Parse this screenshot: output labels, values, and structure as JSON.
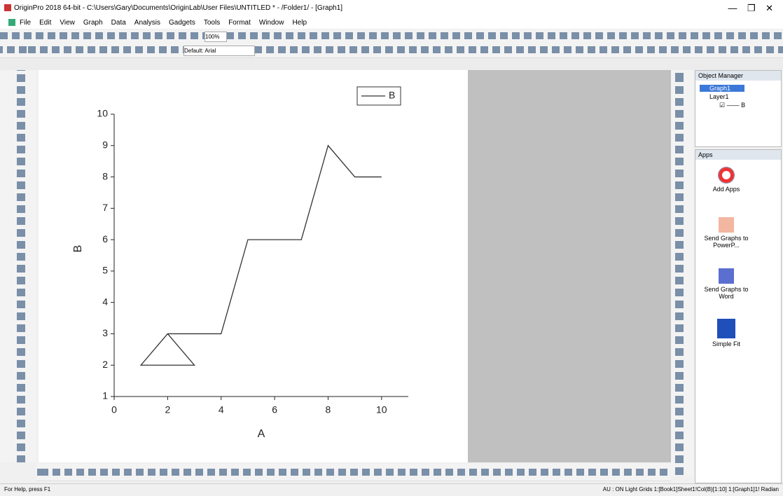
{
  "window": {
    "title": "OriginPro 2018 64-bit - C:\\Users\\Gary\\Documents\\OriginLab\\User Files\\UNTITLED * - /Folder1/ - [Graph1]",
    "menu": [
      "File",
      "Edit",
      "View",
      "Graph",
      "Data",
      "Analysis",
      "Gadgets",
      "Tools",
      "Format",
      "Window",
      "Help"
    ],
    "zoom": "100%",
    "font": "Default: Arial",
    "status_left": "For Help, press F1",
    "status_right": "AU : ON  Light Grids  1:[Book1]Sheet1!Col(B)[1:10]  1:[Graph1]1!  Radian"
  },
  "object_manager": {
    "title": "Object Manager",
    "items": [
      "Graph1",
      "Layer1",
      "B"
    ]
  },
  "apps": {
    "title": "Apps",
    "items": [
      "Add Apps",
      "Send Graphs to PowerP...",
      "Send Graphs to Word",
      "Simple Fit"
    ]
  },
  "chart_data": {
    "type": "line",
    "xlabel": "A",
    "ylabel": "B",
    "x": [
      2,
      3,
      1,
      2,
      4,
      5,
      7,
      8,
      9,
      10
    ],
    "series": [
      {
        "name": "B",
        "color": "#333333",
        "values": [
          3,
          2,
          2,
          3,
          3,
          6,
          6,
          9,
          8,
          8
        ]
      }
    ],
    "xlim": [
      0,
      11
    ],
    "ylim": [
      1,
      10
    ],
    "xticks": [
      0,
      2,
      4,
      6,
      8,
      10
    ],
    "yticks": [
      1,
      2,
      3,
      4,
      5,
      6,
      7,
      8,
      9,
      10
    ],
    "legend": "upper right"
  }
}
